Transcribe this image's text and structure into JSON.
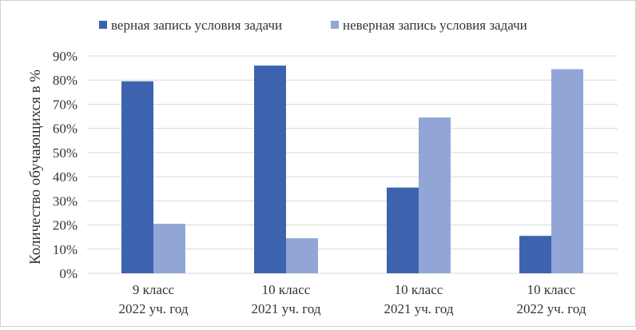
{
  "chart_data": {
    "type": "bar",
    "title": "",
    "xlabel": "",
    "ylabel": "Количество обучающихся в %",
    "ylim": [
      0,
      90
    ],
    "yticks": [
      0,
      10,
      20,
      30,
      40,
      50,
      60,
      70,
      80,
      90
    ],
    "ytick_suffix": "%",
    "grid": true,
    "legend_position": "top",
    "categories": [
      [
        "9 класс",
        "2022 уч. год"
      ],
      [
        "10 класс",
        "2021 уч. год"
      ],
      [
        "10 класс",
        "2021 уч. год"
      ],
      [
        "10 класс",
        "2022 уч. год"
      ]
    ],
    "series": [
      {
        "name": "верная запись условия задачи",
        "color": "#3e63ae",
        "values": [
          79.5,
          86,
          35.5,
          15.5
        ]
      },
      {
        "name": "неверная запись условия задачи",
        "color": "#91a6d6",
        "values": [
          20.5,
          14.5,
          64.5,
          84.5
        ]
      }
    ]
  }
}
